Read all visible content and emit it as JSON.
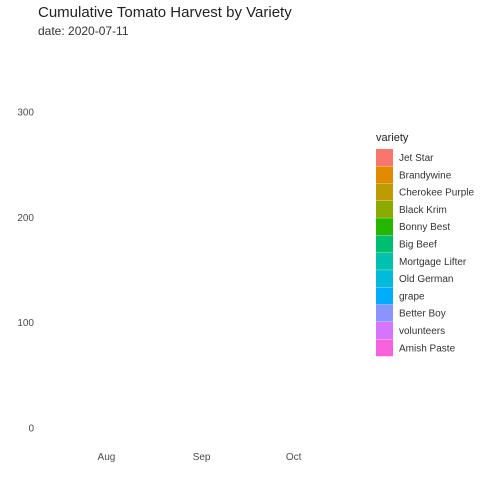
{
  "chart_data": {
    "type": "area",
    "title": "Cumulative Tomato Harvest by Variety",
    "subtitle": "date: 2020-07-11",
    "xlabel": "",
    "ylabel": "",
    "x_ticks": [
      "Aug",
      "Sep",
      "Oct"
    ],
    "x_range": [
      "2020-07-11",
      "2020-10-20"
    ],
    "y_ticks": [
      0,
      100,
      200,
      300
    ],
    "ylim": [
      0,
      325
    ],
    "grid": false,
    "legend": {
      "title": "variety",
      "placement": "right"
    },
    "series": [
      {
        "name": "Jet Star",
        "color": "#F8766D",
        "values": []
      },
      {
        "name": "Brandywine",
        "color": "#E18A00",
        "values": []
      },
      {
        "name": "Cherokee Purple",
        "color": "#BE9C00",
        "values": []
      },
      {
        "name": "Black Krim",
        "color": "#8CAB00",
        "values": []
      },
      {
        "name": "Bonny Best",
        "color": "#24B700",
        "values": []
      },
      {
        "name": "Big Beef",
        "color": "#00BE70",
        "values": []
      },
      {
        "name": "Mortgage Lifter",
        "color": "#00C1AB",
        "values": []
      },
      {
        "name": "Old German",
        "color": "#00BBDA",
        "values": []
      },
      {
        "name": "grape",
        "color": "#00ACFC",
        "values": []
      },
      {
        "name": "Better Boy",
        "color": "#8B93FF",
        "values": []
      },
      {
        "name": "volunteers",
        "color": "#D575FE",
        "values": []
      },
      {
        "name": "Amish Paste",
        "color": "#F962DD",
        "values": []
      }
    ]
  }
}
